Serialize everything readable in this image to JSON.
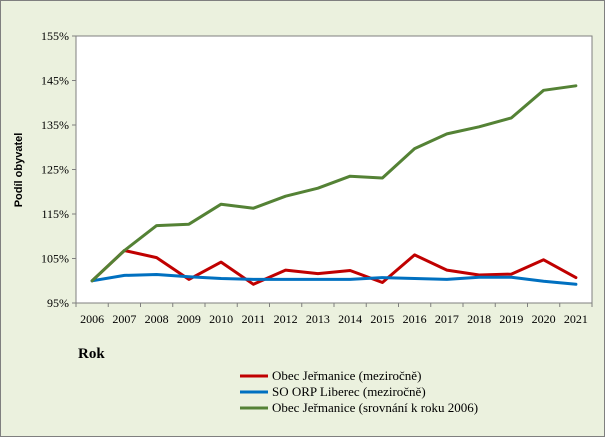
{
  "chart_data": {
    "type": "line",
    "title": "",
    "xlabel": "Rok",
    "ylabel": "Podíl obyvatel",
    "x": [
      "2006",
      "2007",
      "2008",
      "2009",
      "2010",
      "2011",
      "2012",
      "2013",
      "2014",
      "2015",
      "2016",
      "2017",
      "2018",
      "2019",
      "2020",
      "2021"
    ],
    "ylim": [
      95,
      155
    ],
    "yticks": [
      95,
      105,
      115,
      125,
      135,
      145,
      155
    ],
    "ytick_labels": [
      "95%",
      "105%",
      "115%",
      "125%",
      "135%",
      "145%",
      "155%"
    ],
    "grid": false,
    "legend_position": "bottom-right",
    "series": [
      {
        "name": "Obec Jeřmanice (meziročně)",
        "color": "#c00000",
        "values": [
          100,
          106.8,
          105.2,
          100.3,
          104.2,
          99.2,
          102.4,
          101.6,
          102.3,
          99.6,
          105.8,
          102.4,
          101.3,
          101.5,
          104.7,
          100.7
        ]
      },
      {
        "name": "SO ORP Liberec (meziročně)",
        "color": "#0070c0",
        "values": [
          100,
          101.2,
          101.4,
          100.9,
          100.5,
          100.3,
          100.3,
          100.3,
          100.3,
          100.7,
          100.5,
          100.3,
          100.8,
          100.8,
          99.9,
          99.2
        ]
      },
      {
        "name": "Obec Jeřmanice (srovnání k roku 2006)",
        "color": "#548235",
        "values": [
          100,
          106.8,
          112.4,
          112.7,
          117.2,
          116.3,
          119.0,
          120.8,
          123.5,
          123.1,
          129.7,
          133.0,
          134.6,
          136.6,
          142.8,
          143.8
        ]
      }
    ]
  }
}
